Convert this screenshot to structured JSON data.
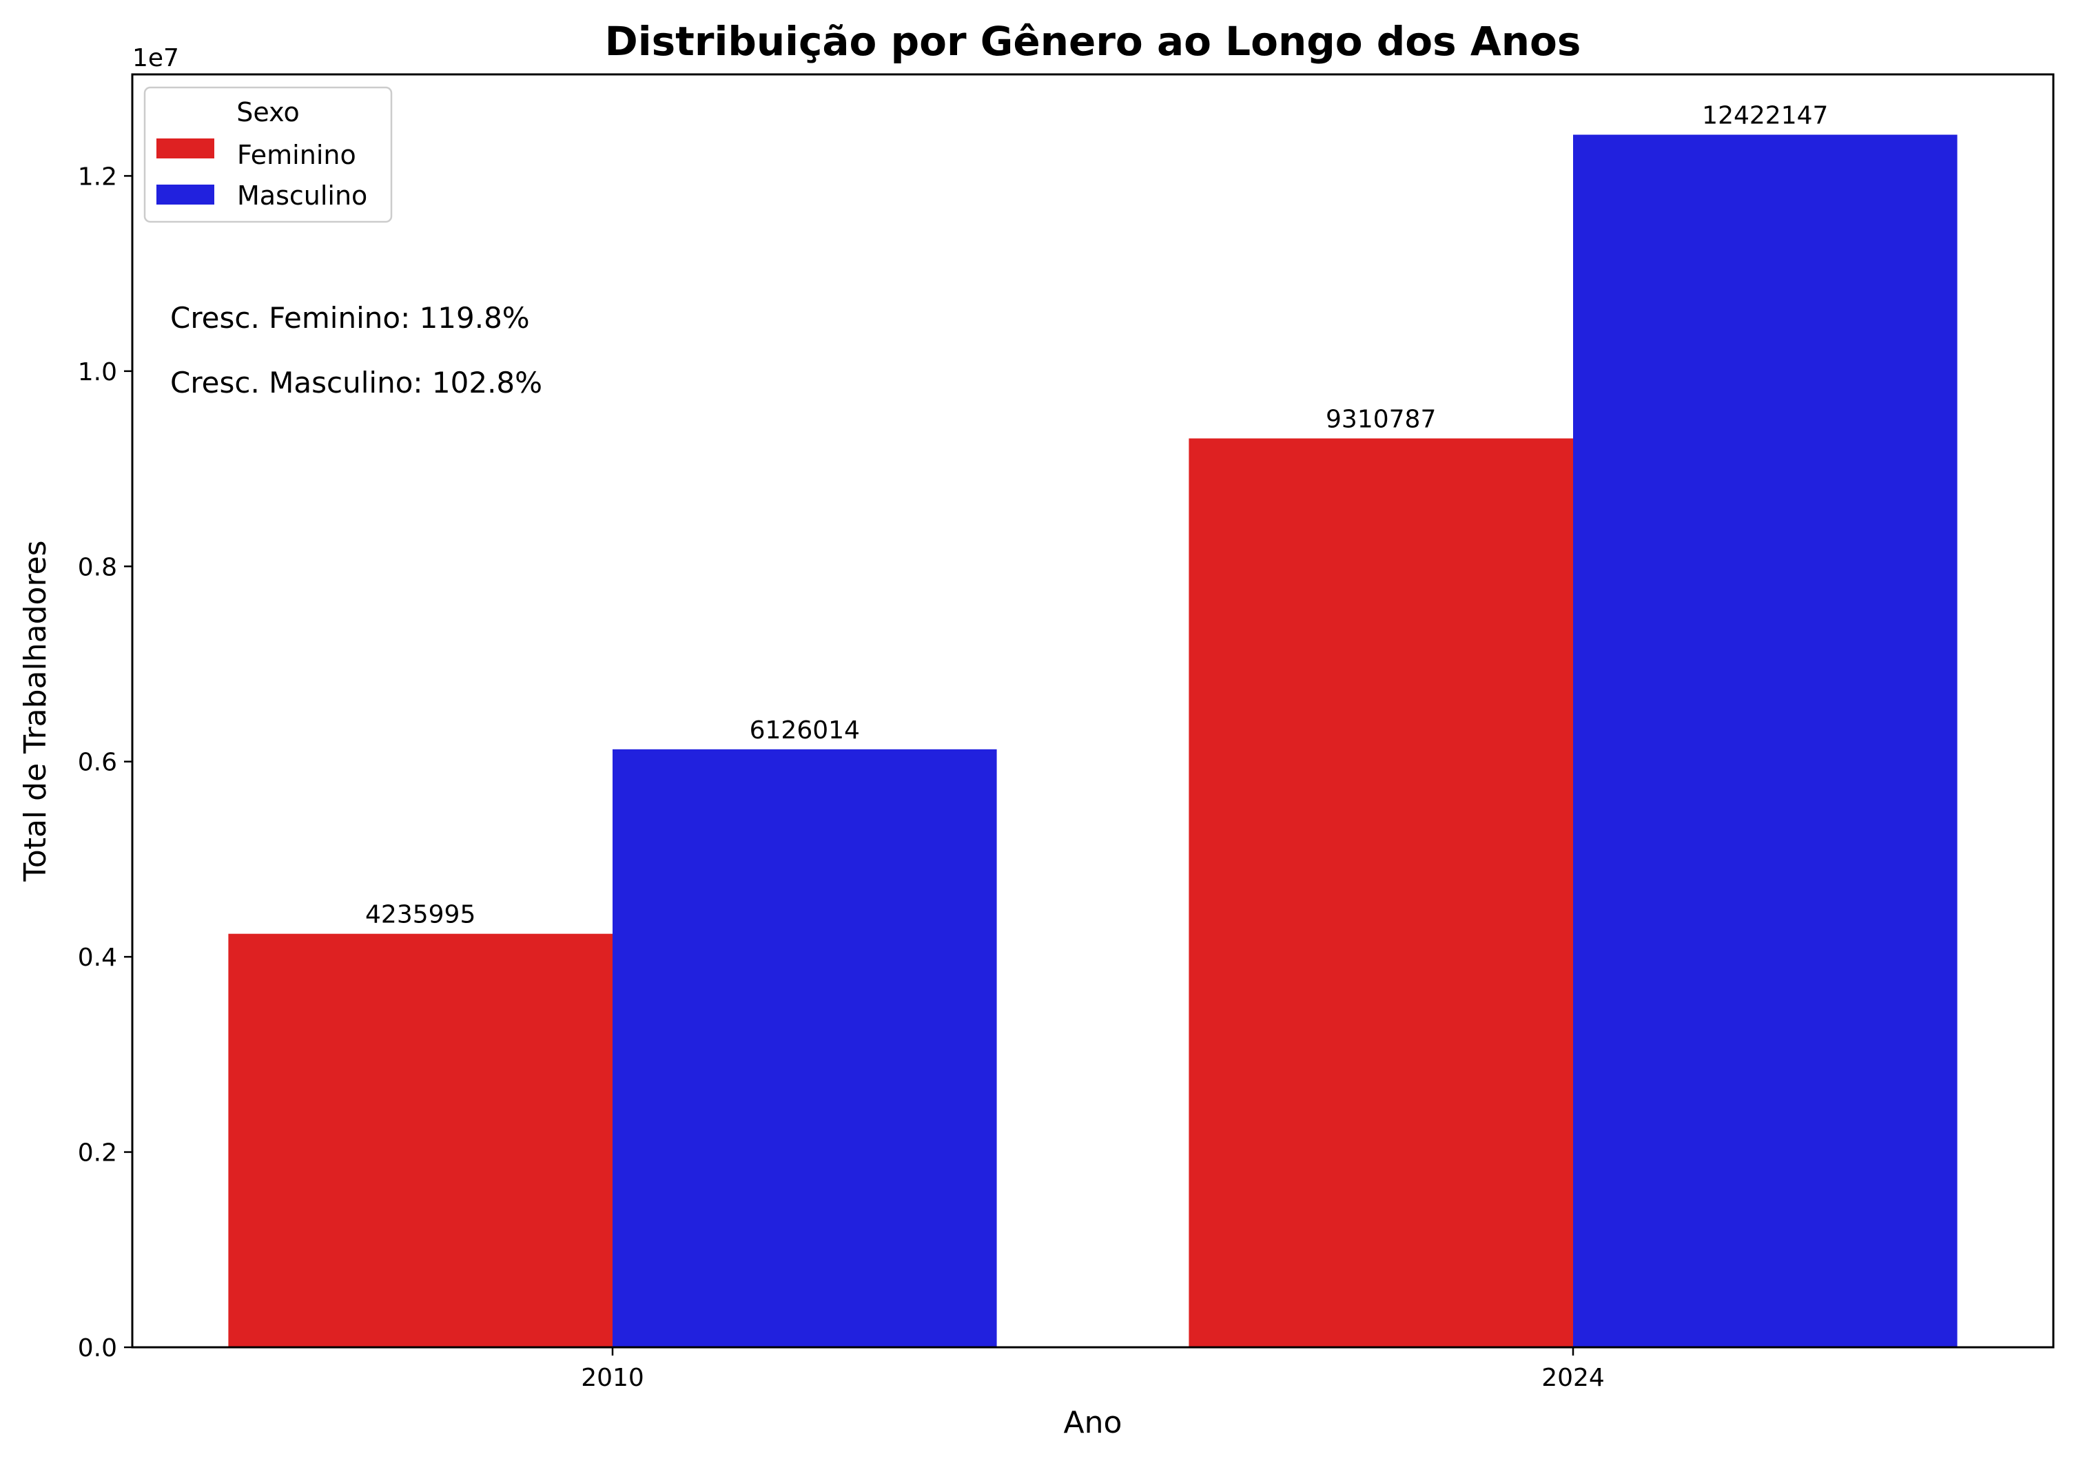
{
  "chart_data": {
    "type": "bar",
    "title": "Distribuição por Gênero ao Longo dos Anos",
    "xlabel": "Ano",
    "ylabel": "Total de Trabalhadores",
    "y_offset_text": "1e7",
    "categories": [
      "2010",
      "2024"
    ],
    "series": [
      {
        "name": "Feminino",
        "color": "#de2122",
        "values": [
          4235995,
          9310787
        ],
        "labels": [
          "4235995",
          "9310787"
        ]
      },
      {
        "name": "Masculino",
        "color": "#2121de",
        "values": [
          6126014,
          12422147
        ],
        "labels": [
          "6126014",
          "12422147"
        ]
      }
    ],
    "ylim": [
      0,
      13040000
    ],
    "yticks": [
      {
        "value": 0,
        "label": "0.0"
      },
      {
        "value": 2000000,
        "label": "0.2"
      },
      {
        "value": 4000000,
        "label": "0.4"
      },
      {
        "value": 6000000,
        "label": "0.6"
      },
      {
        "value": 8000000,
        "label": "0.8"
      },
      {
        "value": 10000000,
        "label": "1.0"
      },
      {
        "value": 12000000,
        "label": "1.2"
      }
    ],
    "legend": {
      "title": "Sexo",
      "placement": "top-left"
    },
    "annotations": [
      "Cresc. Feminino: 119.8%",
      "Cresc. Masculino: 102.8%"
    ],
    "grid": false
  }
}
